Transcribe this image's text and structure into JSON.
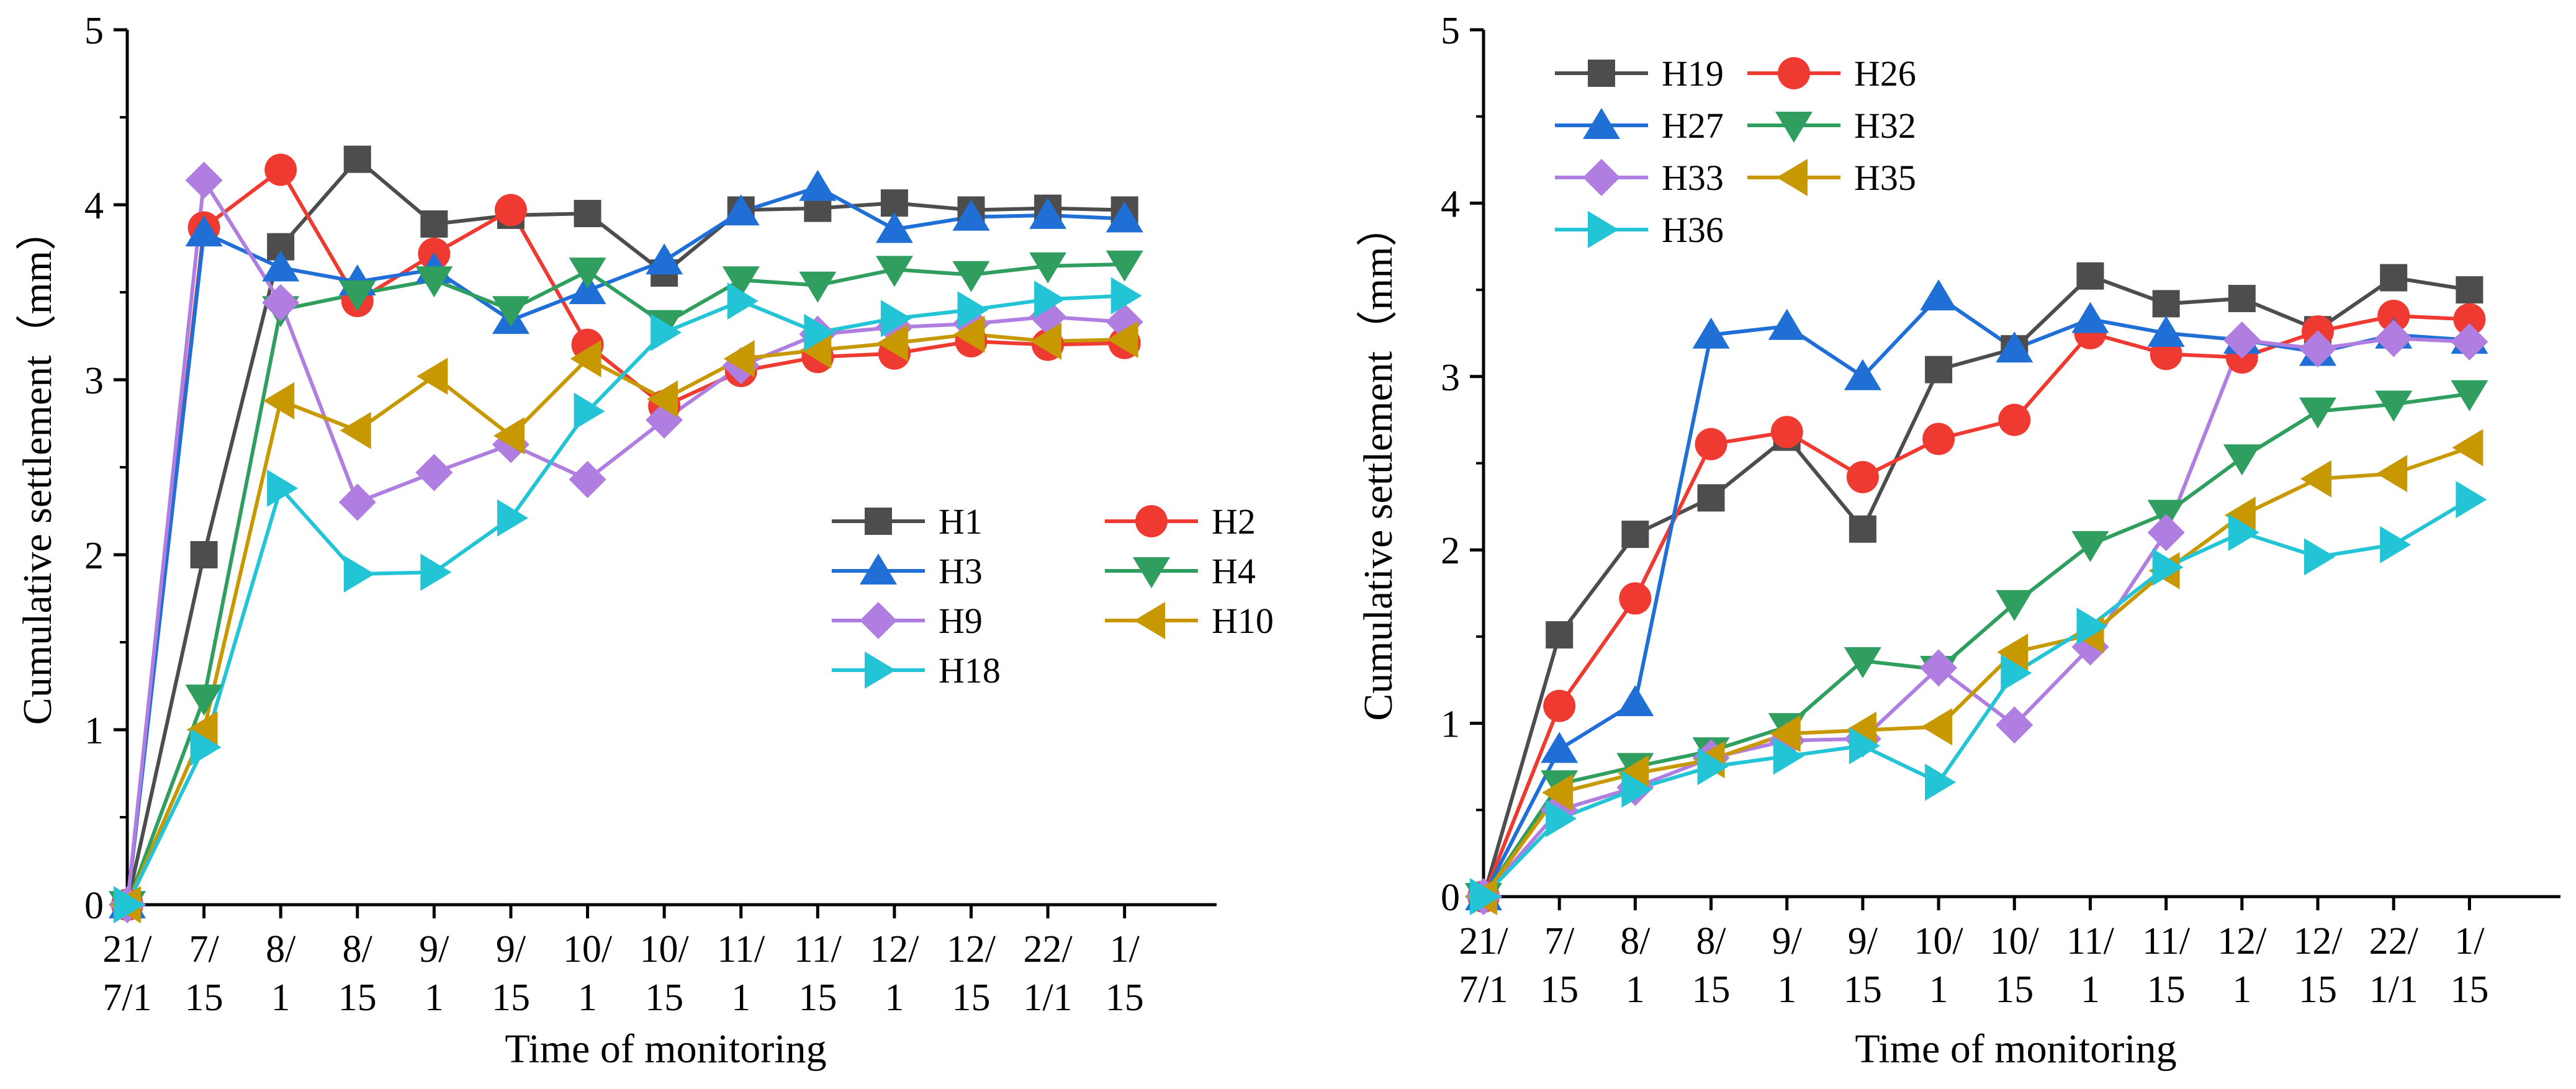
{
  "chart_data": [
    {
      "type": "line",
      "xlabel": "Time of monitoring",
      "ylabel": "Cumulative settlement（mm）",
      "ylim": [
        0,
        5
      ],
      "yticks": [
        "0",
        "1",
        "2",
        "3",
        "4",
        "5"
      ],
      "categories": [
        {
          "line1": "21/",
          "line2": "7/1"
        },
        {
          "line1": "7/",
          "line2": "15"
        },
        {
          "line1": "8/",
          "line2": "1"
        },
        {
          "line1": "8/",
          "line2": "15"
        },
        {
          "line1": "9/",
          "line2": "1"
        },
        {
          "line1": "9/",
          "line2": "15"
        },
        {
          "line1": "10/",
          "line2": "1"
        },
        {
          "line1": "10/",
          "line2": "15"
        },
        {
          "line1": "11/",
          "line2": "1"
        },
        {
          "line1": "11/",
          "line2": "15"
        },
        {
          "line1": "12/",
          "line2": "1"
        },
        {
          "line1": "12/",
          "line2": "15"
        },
        {
          "line1": "22/",
          "line2": "1/1"
        },
        {
          "line1": "1/",
          "line2": "15"
        }
      ],
      "legend_position": "center-right",
      "series": [
        {
          "name": "H1",
          "color": "#4d4d4d",
          "marker": "square",
          "values": [
            0,
            2.0,
            3.76,
            4.26,
            3.89,
            3.94,
            3.95,
            3.61,
            3.97,
            3.98,
            4.01,
            3.97,
            3.98,
            3.97
          ]
        },
        {
          "name": "H2",
          "color": "#ee3a30",
          "marker": "circle",
          "values": [
            0,
            3.87,
            4.2,
            3.45,
            3.72,
            3.97,
            3.2,
            2.85,
            3.05,
            3.13,
            3.15,
            3.22,
            3.2,
            3.21
          ]
        },
        {
          "name": "H3",
          "color": "#1f6fd6",
          "marker": "triangle-up",
          "values": [
            0,
            3.84,
            3.64,
            3.56,
            3.63,
            3.34,
            3.51,
            3.68,
            3.96,
            4.1,
            3.86,
            3.93,
            3.94,
            3.92
          ]
        },
        {
          "name": "H4",
          "color": "#2f9e5f",
          "marker": "triangle-down",
          "values": [
            0,
            1.18,
            3.4,
            3.49,
            3.57,
            3.4,
            3.62,
            3.32,
            3.57,
            3.54,
            3.63,
            3.6,
            3.65,
            3.66
          ]
        },
        {
          "name": "H9",
          "color": "#b07de0",
          "marker": "diamond",
          "values": [
            0,
            4.14,
            3.44,
            2.3,
            2.47,
            2.63,
            2.43,
            2.77,
            3.08,
            3.26,
            3.3,
            3.32,
            3.36,
            3.33
          ]
        },
        {
          "name": "H10",
          "color": "#c79800",
          "marker": "triangle-left",
          "values": [
            0,
            1.0,
            2.88,
            2.71,
            3.02,
            2.68,
            3.12,
            2.89,
            3.12,
            3.17,
            3.21,
            3.26,
            3.22,
            3.23
          ]
        },
        {
          "name": "H18",
          "color": "#22c4d6",
          "marker": "triangle-right",
          "values": [
            0,
            0.9,
            2.38,
            1.89,
            1.9,
            2.21,
            2.82,
            3.27,
            3.45,
            3.27,
            3.35,
            3.4,
            3.46,
            3.48
          ]
        }
      ]
    },
    {
      "type": "line",
      "xlabel": "Time of monitoring",
      "ylabel": "Cumulative settlement（mm）",
      "ylim": [
        0,
        5
      ],
      "yticks": [
        "0",
        "1",
        "2",
        "3",
        "4",
        "5"
      ],
      "categories": [
        {
          "line1": "21/",
          "line2": "7/1"
        },
        {
          "line1": "7/",
          "line2": "15"
        },
        {
          "line1": "8/",
          "line2": "1"
        },
        {
          "line1": "8/",
          "line2": "15"
        },
        {
          "line1": "9/",
          "line2": "1"
        },
        {
          "line1": "9/",
          "line2": "15"
        },
        {
          "line1": "10/",
          "line2": "1"
        },
        {
          "line1": "10/",
          "line2": "15"
        },
        {
          "line1": "11/",
          "line2": "1"
        },
        {
          "line1": "11/",
          "line2": "15"
        },
        {
          "line1": "12/",
          "line2": "1"
        },
        {
          "line1": "12/",
          "line2": "15"
        },
        {
          "line1": "22/",
          "line2": "1/1"
        },
        {
          "line1": "1/",
          "line2": "15"
        }
      ],
      "legend_position": "top-left",
      "series": [
        {
          "name": "H19",
          "color": "#4d4d4d",
          "marker": "square",
          "values": [
            0,
            1.51,
            2.09,
            2.3,
            2.65,
            2.12,
            3.04,
            3.16,
            3.58,
            3.42,
            3.45,
            3.27,
            3.57,
            3.5
          ]
        },
        {
          "name": "H26",
          "color": "#ee3a30",
          "marker": "circle",
          "values": [
            0,
            1.1,
            1.72,
            2.61,
            2.68,
            2.42,
            2.64,
            2.75,
            3.25,
            3.13,
            3.11,
            3.26,
            3.35,
            3.33
          ]
        },
        {
          "name": "H27",
          "color": "#1f6fd6",
          "marker": "triangle-up",
          "values": [
            0,
            0.85,
            1.12,
            3.24,
            3.29,
            3.0,
            3.46,
            3.16,
            3.33,
            3.25,
            3.21,
            3.14,
            3.24,
            3.21
          ]
        },
        {
          "name": "H32",
          "color": "#2f9e5f",
          "marker": "triangle-down",
          "values": [
            0,
            0.65,
            0.75,
            0.84,
            0.98,
            1.36,
            1.31,
            1.69,
            2.03,
            2.21,
            2.53,
            2.8,
            2.84,
            2.9
          ]
        },
        {
          "name": "H33",
          "color": "#b07de0",
          "marker": "diamond",
          "values": [
            0,
            0.5,
            0.63,
            0.8,
            0.9,
            0.91,
            1.32,
            0.99,
            1.44,
            2.1,
            3.21,
            3.16,
            3.22,
            3.2
          ]
        },
        {
          "name": "H35",
          "color": "#c79800",
          "marker": "triangle-left",
          "values": [
            0,
            0.6,
            0.71,
            0.79,
            0.94,
            0.96,
            0.98,
            1.41,
            1.51,
            1.88,
            2.2,
            2.41,
            2.44,
            2.59
          ]
        },
        {
          "name": "H36",
          "color": "#22c4d6",
          "marker": "triangle-right",
          "values": [
            0,
            0.45,
            0.62,
            0.75,
            0.81,
            0.87,
            0.66,
            1.29,
            1.56,
            1.9,
            2.1,
            1.96,
            2.03,
            2.29
          ]
        }
      ]
    }
  ]
}
